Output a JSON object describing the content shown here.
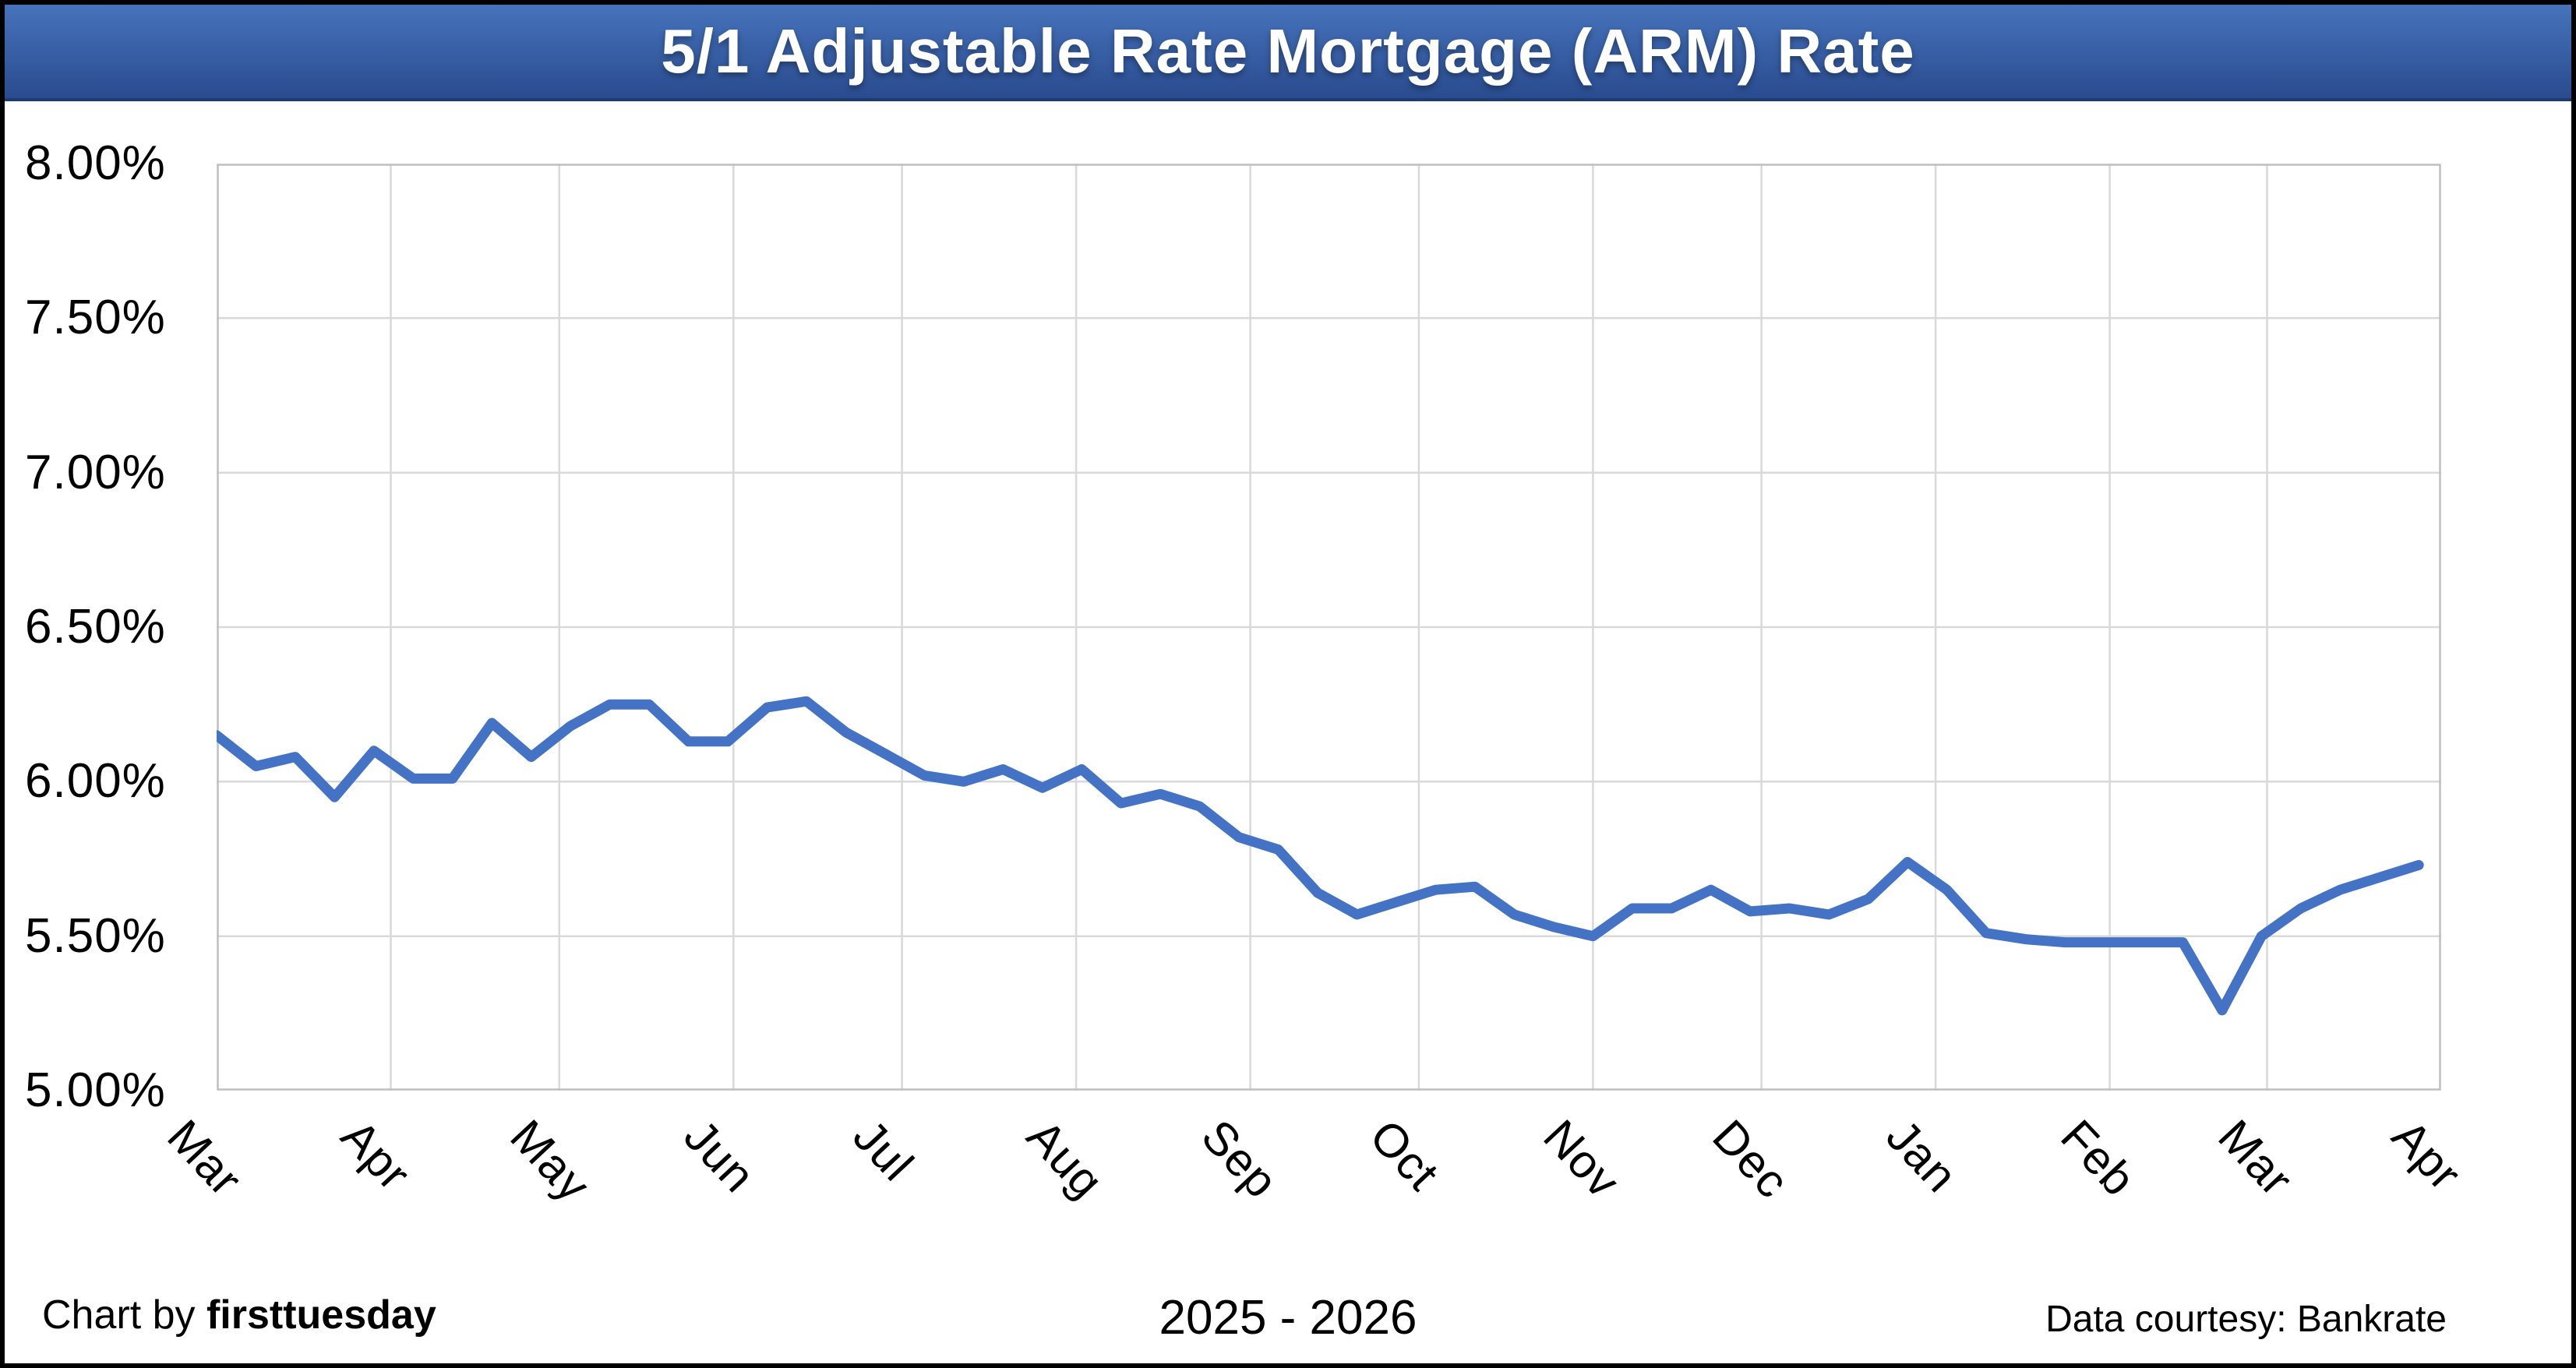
{
  "header": {
    "title": "5/1 Adjustable Rate Mortgage (ARM) Rate"
  },
  "footer": {
    "credit_prefix": "Chart by ",
    "credit_name": "firsttuesday",
    "period": "2025 - 2026",
    "source": "Data courtesy: Bankrate"
  },
  "colors": {
    "line": "#4472C4",
    "gridline": "#D9D9D9",
    "plot_border": "#BFBFBF",
    "banner_top": "#4673BC",
    "banner_bottom": "#2A4B8F",
    "title_text": "#FFFFFF",
    "axis_text": "#000000"
  },
  "chart_data": {
    "type": "line",
    "title": "5/1 Adjustable Rate Mortgage (ARM) Rate",
    "xlabel": "2025 - 2026",
    "ylabel": "",
    "grid": true,
    "legend": "none",
    "ylim": [
      5.0,
      8.0
    ],
    "y_tick_labels": [
      "8.00%",
      "7.50%",
      "7.00%",
      "6.50%",
      "6.00%",
      "5.50%",
      "5.00%"
    ],
    "x_tick_labels": [
      "Mar",
      "Apr",
      "May",
      "Jun",
      "Jul",
      "Aug",
      "Sep",
      "Oct",
      "Nov",
      "Dec",
      "Jan",
      "Feb",
      "Mar",
      "Apr"
    ],
    "days_per_month": [
      31,
      30,
      31,
      30,
      31,
      31,
      30,
      31,
      30,
      31,
      31,
      28,
      31
    ],
    "series": [
      {
        "name": "5/1 ARM rate (%)",
        "frequency": "weekly",
        "values": [
          6.15,
          6.05,
          6.08,
          5.95,
          6.1,
          6.01,
          6.01,
          6.19,
          6.08,
          6.18,
          6.25,
          6.25,
          6.13,
          6.13,
          6.24,
          6.26,
          6.16,
          6.09,
          6.02,
          6.0,
          6.04,
          5.98,
          6.04,
          5.93,
          5.96,
          5.92,
          5.82,
          5.78,
          5.64,
          5.57,
          5.61,
          5.65,
          5.66,
          5.57,
          5.53,
          5.5,
          5.59,
          5.59,
          5.65,
          5.58,
          5.59,
          5.57,
          5.62,
          5.74,
          5.65,
          5.51,
          5.49,
          5.48,
          5.48,
          5.48,
          5.48,
          5.26,
          5.5,
          5.59,
          5.65,
          5.69,
          5.73
        ]
      }
    ]
  }
}
